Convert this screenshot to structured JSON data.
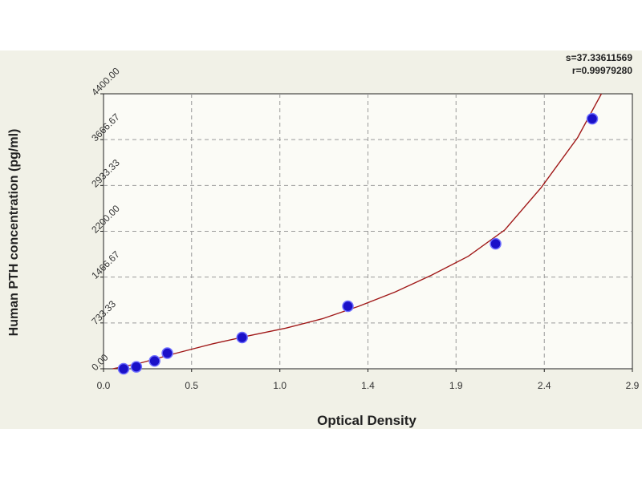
{
  "stats": {
    "s_line": "s=37.33611569",
    "r_line": "r=0.99979280"
  },
  "chart_data": {
    "type": "scatter",
    "title": "",
    "xlabel": "Optical Density",
    "ylabel": "Human PTH concentration (pg/ml)",
    "xlim": [
      0.0,
      2.9
    ],
    "ylim": [
      0.0,
      4400.0
    ],
    "x_ticks": [
      "0.0",
      "0.5",
      "1.0",
      "1.4",
      "1.9",
      "2.4",
      "2.9"
    ],
    "x_tick_values": [
      0.0,
      0.483,
      0.967,
      1.45,
      1.933,
      2.417,
      2.9
    ],
    "y_ticks": [
      "0.00",
      "733.33",
      "1466.67",
      "2200.00",
      "2933.33",
      "3666.67",
      "4400.00"
    ],
    "y_tick_values": [
      0.0,
      733.33,
      1466.67,
      2200.0,
      2933.33,
      3666.67,
      4400.0
    ],
    "grid": true,
    "series": [
      {
        "x": [
          0.11,
          0.18,
          0.28,
          0.35,
          0.76,
          1.34,
          2.15,
          2.68
        ],
        "y": [
          0,
          31,
          125,
          250,
          500,
          1000,
          2000,
          4000
        ]
      }
    ],
    "fit_curve": {
      "x": [
        0.05,
        0.2,
        0.4,
        0.6,
        0.8,
        1.0,
        1.2,
        1.4,
        1.6,
        1.8,
        2.0,
        2.2,
        2.4,
        2.6,
        2.73
      ],
      "y": [
        0,
        90,
        250,
        400,
        530,
        650,
        800,
        1000,
        1230,
        1500,
        1800,
        2220,
        2900,
        3700,
        4400
      ]
    },
    "colors": {
      "marker": "#1a10c8",
      "marker_edge": "#6f6fff",
      "curve": "#a01818",
      "plot_bg": "#fbfbf6",
      "frame_bg": "#f1f1e7",
      "grid": "#9a9a9a"
    }
  }
}
